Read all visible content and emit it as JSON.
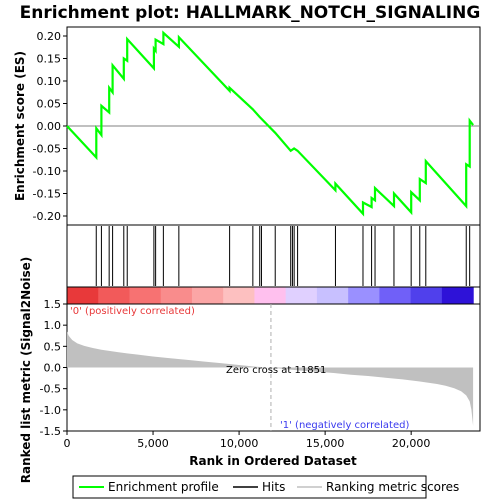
{
  "chart_data": {
    "type": "line",
    "title": "Enrichment plot: HALLMARK_NOTCH_SIGNALING",
    "es_panel": {
      "ylabel": "Enrichment score (ES)",
      "ylim": [
        -0.22,
        0.22
      ],
      "yticks": [
        "0.20",
        "0.15",
        "0.10",
        "0.05",
        "0.00",
        "-0.05",
        "-0.10",
        "-0.15",
        "-0.20"
      ],
      "ytick_values": [
        0.2,
        0.15,
        0.1,
        0.05,
        0.0,
        -0.05,
        -0.1,
        -0.15,
        -0.2
      ],
      "series": [
        {
          "name": "Enrichment profile",
          "color": "#00ff00",
          "x": [
            0,
            1700,
            1700,
            2000,
            2000,
            2450,
            2450,
            2650,
            2650,
            3300,
            3300,
            3500,
            3500,
            5050,
            5050,
            5150,
            5150,
            5600,
            5600,
            6500,
            6500,
            9450,
            9450,
            10800,
            11200,
            12100,
            13000,
            13200,
            13400,
            15600,
            15600,
            17200,
            17200,
            17700,
            17700,
            17900,
            17900,
            19000,
            19000,
            20000,
            20000,
            20500,
            20500,
            20850,
            20850,
            23200,
            23200,
            23400,
            23400,
            23600
          ],
          "y": [
            0.0,
            -0.07,
            -0.005,
            -0.02,
            0.045,
            0.03,
            0.085,
            0.075,
            0.135,
            0.105,
            0.15,
            0.145,
            0.193,
            0.128,
            0.172,
            0.167,
            0.192,
            0.182,
            0.207,
            0.176,
            0.197,
            0.078,
            0.085,
            0.037,
            0.02,
            -0.015,
            -0.055,
            -0.05,
            -0.055,
            -0.143,
            -0.128,
            -0.195,
            -0.17,
            -0.18,
            -0.16,
            -0.165,
            -0.138,
            -0.178,
            -0.15,
            -0.192,
            -0.147,
            -0.165,
            -0.118,
            -0.127,
            -0.078,
            -0.178,
            -0.085,
            -0.09,
            0.012,
            0.002
          ]
        }
      ]
    },
    "hits": {
      "name": "Hits",
      "positions": [
        1700,
        2000,
        2450,
        2650,
        3300,
        3500,
        5050,
        5150,
        5600,
        6500,
        9450,
        10800,
        11200,
        11300,
        12100,
        13000,
        13100,
        13200,
        13400,
        15600,
        17200,
        17700,
        17900,
        19000,
        20000,
        20500,
        20850,
        23200,
        23400
      ]
    },
    "rank_bar": {
      "colors": [
        "#e8393a",
        "#f25a5a",
        "#f77272",
        "#f98c8c",
        "#fba6a6",
        "#fdc0c0",
        "#ffc0ee",
        "#e0d0ff",
        "#c8c0ff",
        "#9a90ff",
        "#7060f8",
        "#5040ec",
        "#2e12d8"
      ]
    },
    "metric_panel": {
      "ylabel": "Ranked list metric (Signal2Noise)",
      "ylim": [
        -1.5,
        1.5
      ],
      "yticks": [
        "1.5",
        "1.0",
        "0.5",
        "0.0",
        "-0.5",
        "-1.0",
        "-1.5"
      ],
      "ytick_values": [
        1.5,
        1.0,
        0.5,
        0.0,
        -0.5,
        -1.0,
        -1.5
      ],
      "series_name": "Ranking metric scores",
      "color": "#c0c0c0",
      "x": [
        0,
        100,
        300,
        600,
        1000,
        1500,
        2000,
        3000,
        4000,
        5000,
        6000,
        7000,
        8000,
        9000,
        10000,
        11000,
        11851,
        12500,
        13500,
        14500,
        15500,
        16500,
        17500,
        18500,
        19500,
        20500,
        21500,
        22000,
        22500,
        22900,
        23200,
        23400,
        23500,
        23600
      ],
      "y": [
        0.85,
        0.75,
        0.65,
        0.57,
        0.51,
        0.46,
        0.42,
        0.36,
        0.31,
        0.26,
        0.22,
        0.18,
        0.14,
        0.1,
        0.06,
        0.02,
        0.0,
        -0.03,
        -0.07,
        -0.1,
        -0.13,
        -0.17,
        -0.2,
        -0.24,
        -0.28,
        -0.33,
        -0.39,
        -0.43,
        -0.49,
        -0.56,
        -0.66,
        -0.8,
        -1.0,
        -1.38
      ]
    },
    "xaxis": {
      "xlabel": "Rank in Ordered Dataset",
      "xlim": [
        0,
        24000
      ],
      "xtick_labels": [
        "0",
        "5,000",
        "10,000",
        "15,000",
        "20,000"
      ],
      "xtick_values": [
        0,
        5000,
        10000,
        15000,
        20000
      ]
    },
    "zero_cross": {
      "value": 11851,
      "label": "Zero cross at 11851"
    },
    "annotations": {
      "positive": "'0' (positively correlated)",
      "negative": "'1' (negatively correlated)",
      "positive_color": "#e8393a",
      "negative_color": "#3a3aee"
    },
    "legend": {
      "placement": "bottom",
      "items": [
        {
          "label": "Enrichment profile",
          "color": "#00ff00"
        },
        {
          "label": "Hits",
          "color": "#000000"
        },
        {
          "label": "Ranking metric scores",
          "color": "#c0c0c0"
        }
      ]
    }
  }
}
